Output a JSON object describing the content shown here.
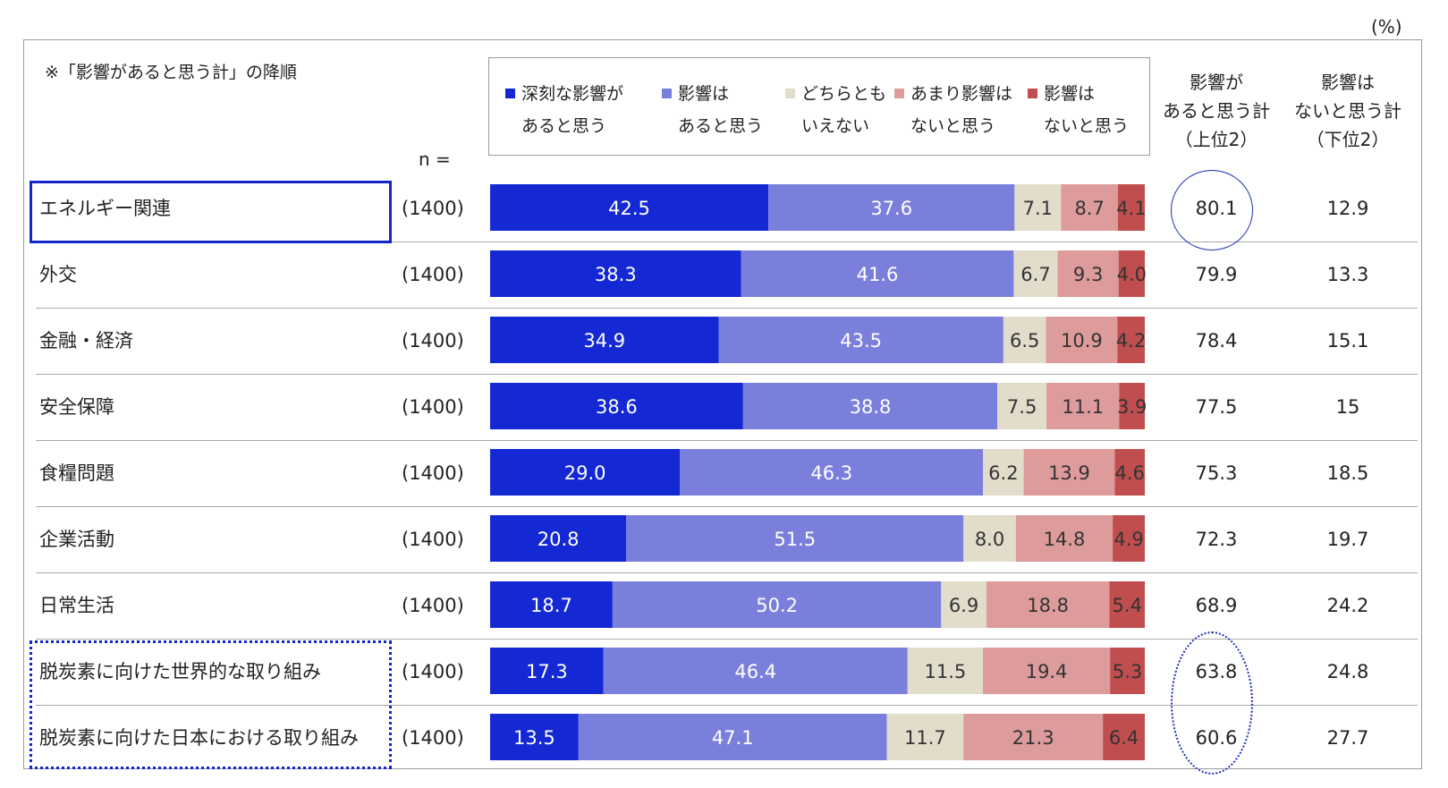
{
  "unit_label": "(%)",
  "sort_note": "※「影響があると思う計」の降順",
  "n_label": "n =",
  "legend": [
    {
      "line1": "深刻な影響が",
      "line2": "あると思う",
      "color": "#1428d4"
    },
    {
      "line1": "影響は",
      "line2": "あると思う",
      "color": "#7b7fdc"
    },
    {
      "line1": "どちらとも",
      "line2": "いえない",
      "color": "#e2dccb"
    },
    {
      "line1": "あまり影響は",
      "line2": "ないと思う",
      "color": "#de9b9b"
    },
    {
      "line1": "影響は",
      "line2": "ないと思う",
      "color": "#c04e4e"
    }
  ],
  "column_headers": {
    "top2": [
      "影響が",
      "あると思う計",
      "（上位2）"
    ],
    "bottom2": [
      "影響は",
      "ないと思う計",
      "（下位2）"
    ]
  },
  "chart_data": {
    "type": "bar",
    "orientation": "horizontal",
    "stacked": true,
    "percent": true,
    "xlim": [
      0,
      100
    ],
    "categories": [
      "エネルギー関連",
      "外交",
      "金融・経済",
      "安全保障",
      "食糧問題",
      "企業活動",
      "日常生活",
      "脱炭素に向けた世界的な取り組み",
      "脱炭素に向けた日本における取り組み"
    ],
    "n": [
      "(1400)",
      "(1400)",
      "(1400)",
      "(1400)",
      "(1400)",
      "(1400)",
      "(1400)",
      "(1400)",
      "(1400)"
    ],
    "series": [
      {
        "name": "深刻な影響があると思う",
        "values": [
          42.5,
          38.3,
          34.9,
          38.6,
          29.0,
          20.8,
          18.7,
          17.3,
          13.5
        ]
      },
      {
        "name": "影響はあると思う",
        "values": [
          37.6,
          41.6,
          43.5,
          38.8,
          46.3,
          51.5,
          50.2,
          46.4,
          47.1
        ]
      },
      {
        "name": "どちらともいえない",
        "values": [
          7.1,
          6.7,
          6.5,
          7.5,
          6.2,
          8.0,
          6.9,
          11.5,
          11.7
        ]
      },
      {
        "name": "あまり影響はないと思う",
        "values": [
          8.7,
          9.3,
          10.9,
          11.1,
          13.9,
          14.8,
          18.8,
          19.4,
          21.3
        ]
      },
      {
        "name": "影響はないと思う",
        "values": [
          4.1,
          4.0,
          4.2,
          3.9,
          4.6,
          4.9,
          5.4,
          5.3,
          6.4
        ]
      }
    ],
    "totals_top2": [
      80.1,
      79.9,
      78.4,
      77.5,
      75.3,
      72.3,
      68.9,
      63.8,
      60.6
    ],
    "totals_bottom2": [
      12.9,
      13.3,
      15.1,
      15.0,
      18.5,
      19.7,
      24.2,
      24.8,
      27.7
    ],
    "label_colors": [
      "#ffffff",
      "#ffffff",
      "#333333",
      "#333333",
      "#333333"
    ]
  }
}
